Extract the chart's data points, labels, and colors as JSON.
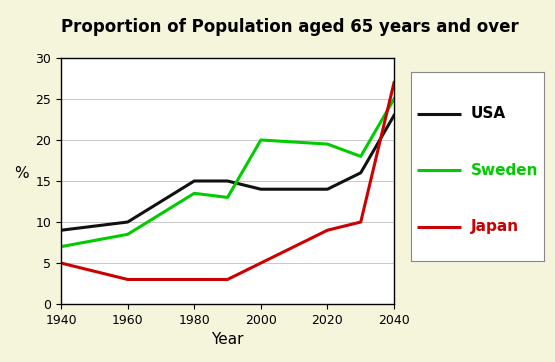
{
  "title": "Proportion of Population aged 65 years and over",
  "xlabel": "Year",
  "ylabel": "%",
  "xlim": [
    1940,
    2040
  ],
  "ylim": [
    0,
    30
  ],
  "xticks": [
    1940,
    1960,
    1980,
    2000,
    2020,
    2040
  ],
  "yticks": [
    0,
    5,
    10,
    15,
    20,
    25,
    30
  ],
  "background_color": "#ffffff",
  "outer_bg": "#f5f5dc",
  "series": [
    {
      "label": "USA",
      "color": "#111111",
      "linewidth": 2.2,
      "linestyle": "solid",
      "x": [
        1940,
        1960,
        1980,
        1990,
        2000,
        2020,
        2030,
        2040
      ],
      "y": [
        9,
        10,
        15,
        15,
        14,
        14,
        16,
        23
      ]
    },
    {
      "label": "Sweden",
      "color": "#00cc00",
      "linewidth": 2.2,
      "linestyle": "solid",
      "x": [
        1940,
        1960,
        1980,
        1990,
        2000,
        2020,
        2030,
        2040
      ],
      "y": [
        7,
        8.5,
        13.5,
        13,
        20,
        19.5,
        18,
        25
      ]
    },
    {
      "label": "Japan",
      "color": "#cc0000",
      "linewidth": 2.2,
      "linestyle": "solid",
      "x": [
        1940,
        1960,
        1980,
        1990,
        2000,
        2020,
        2030,
        2040
      ],
      "y": [
        5,
        3,
        3,
        3,
        5,
        9,
        10,
        27
      ]
    }
  ],
  "legend_colors": [
    "#111111",
    "#00cc00",
    "#cc0000"
  ],
  "legend_labels": [
    "USA",
    "Sweden",
    "Japan"
  ],
  "legend_label_colors": [
    "#000000",
    "#00cc00",
    "#cc0000"
  ],
  "title_fontsize": 12,
  "axis_fontsize": 11,
  "tick_fontsize": 9,
  "legend_fontsize": 11
}
